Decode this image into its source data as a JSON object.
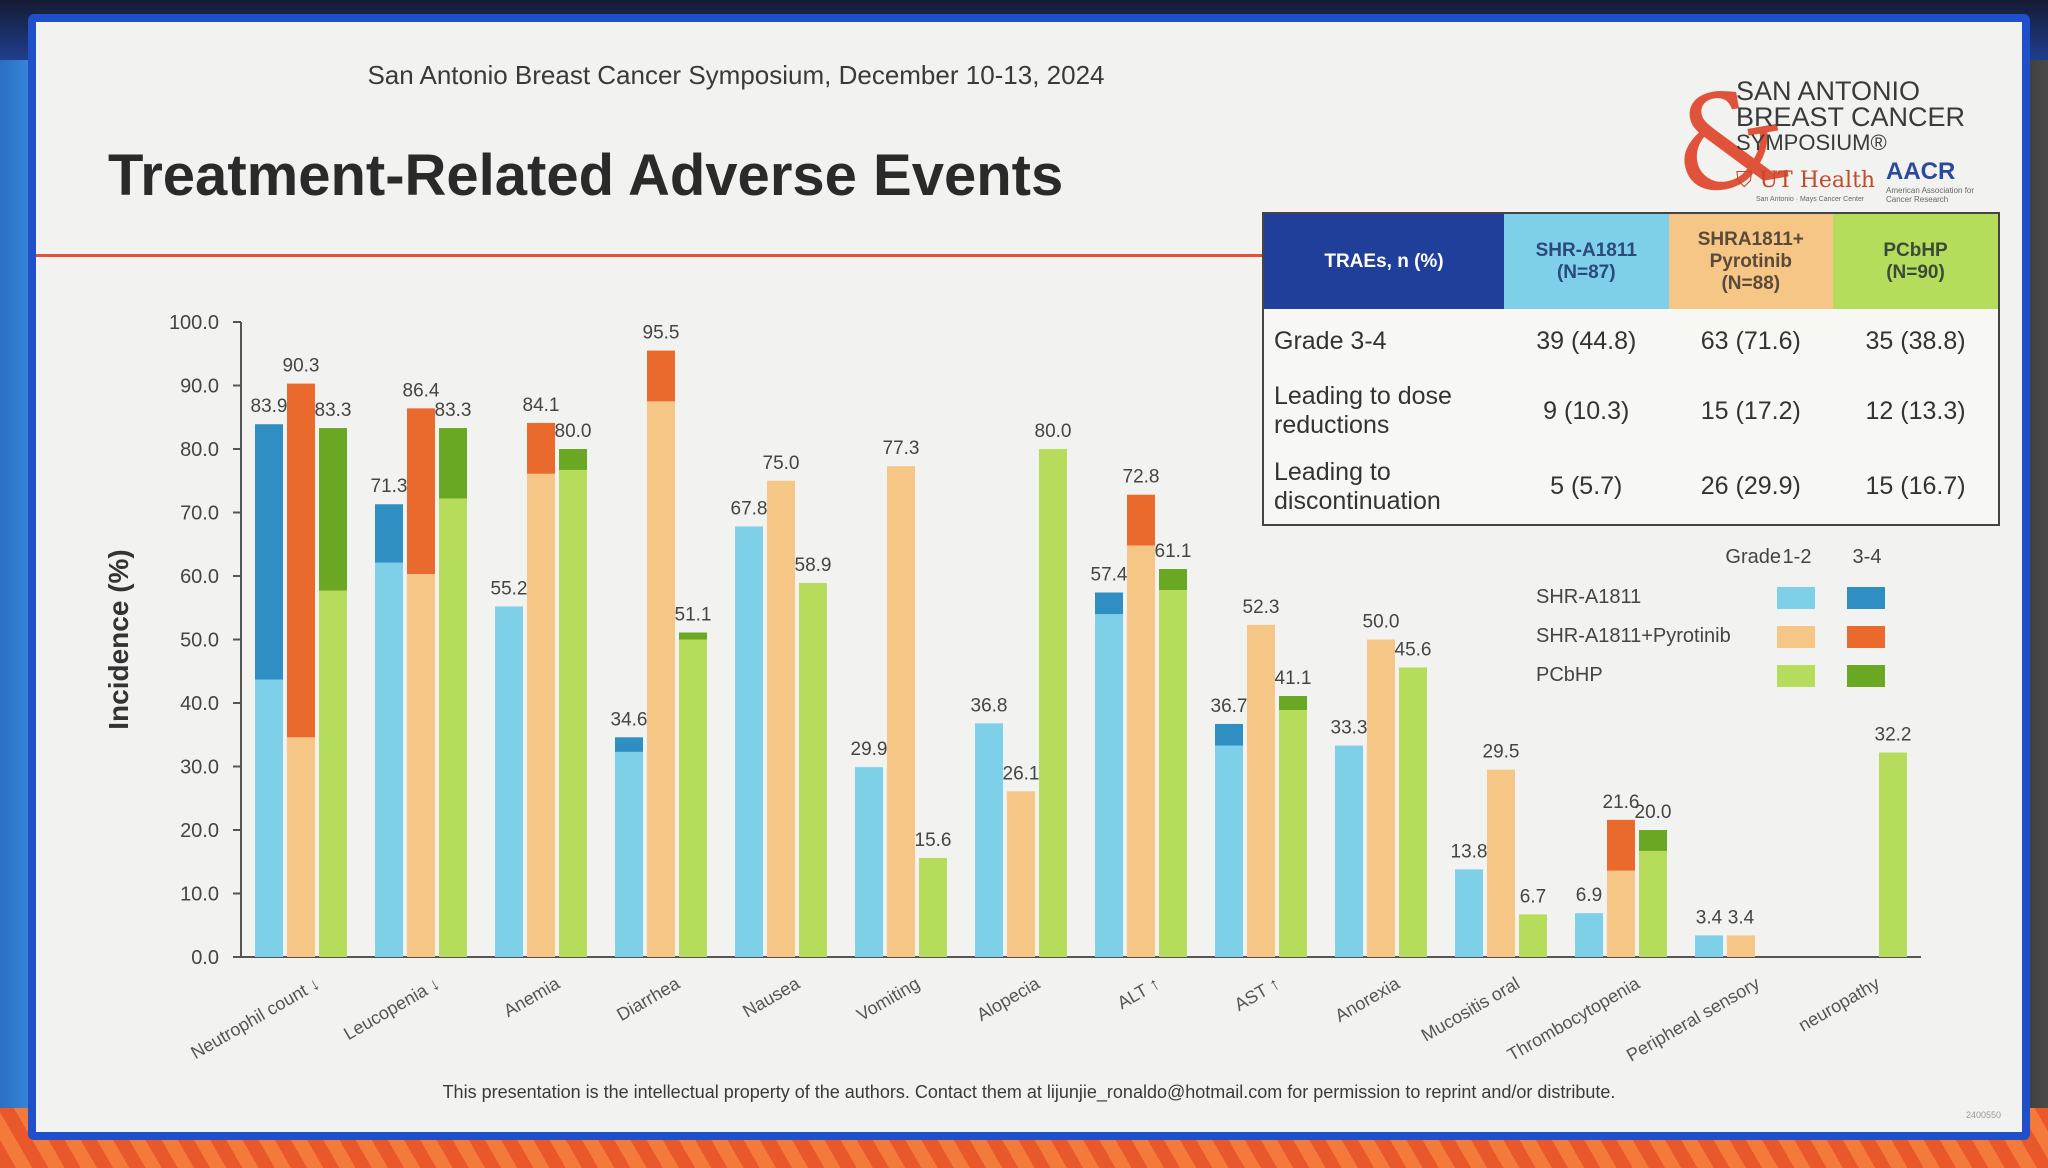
{
  "header": "San Antonio Breast Cancer Symposium, December 10-13, 2024",
  "title": "Treatment-Related Adverse Events",
  "logo": {
    "line1": "SAN ANTONIO",
    "line2": "BREAST CANCER",
    "line3": "SYMPOSIUM®",
    "ut": "UT Health",
    "ut_sub": "San Antonio · Mays Cancer Center",
    "aacr": "AACR",
    "aacr_sub": "American Association for Cancer Research"
  },
  "table": {
    "corner": "TRAEs, n (%)",
    "columns": [
      {
        "line1": "SHR-A1811",
        "line2": "(N=87)",
        "bg": "#7ecfe8"
      },
      {
        "line1": "SHRA1811+",
        "line2": "Pyrotinib",
        "line3": "(N=88)",
        "bg": "#f6c686"
      },
      {
        "line1": "PCbHP",
        "line2": "(N=90)",
        "bg": "#b6dc5c"
      }
    ],
    "rows": [
      {
        "label1": "Grade 3-4",
        "label2": "",
        "values": [
          "39 (44.8)",
          "63 (71.6)",
          "35 (38.8)"
        ]
      },
      {
        "label1": "Leading to dose",
        "label2": "reductions",
        "values": [
          "9 (10.3)",
          "15 (17.2)",
          "12 (13.3)"
        ]
      },
      {
        "label1": "Leading to",
        "label2": "discontinuation",
        "values": [
          "5 (5.7)",
          "26 (29.9)",
          "15 (16.7)"
        ]
      }
    ]
  },
  "footer": "This presentation is the intellectual property of the authors. Contact them at lijunjie_ronaldo@hotmail.com for permission to reprint and/or distribute.",
  "footer_code": "2400550",
  "chart_data": {
    "type": "bar",
    "ylabel": "Incidence (%)",
    "ylim": [
      0,
      100
    ],
    "yticks": [
      "0.0",
      "10.0",
      "20.0",
      "30.0",
      "40.0",
      "50.0",
      "60.0",
      "70.0",
      "80.0",
      "90.0",
      "100.0"
    ],
    "categories": [
      "Neutrophil count ↓",
      "Leucopenia ↓",
      "Anemia",
      "Diarrhea",
      "Nausea",
      "Vomiting",
      "Alopecia",
      "ALT ↑",
      "AST ↑",
      "Anorexia",
      "Mucositis oral",
      "Thrombocytopenia",
      "Peripheral sensory",
      "neuropathy"
    ],
    "legend": {
      "grade_label": "Grade",
      "grade_12": "1-2",
      "grade_34": "3-4",
      "placement": "right",
      "entries": [
        "SHR-A1811",
        "SHR-A1811+Pyrotinib",
        "PCbHP"
      ]
    },
    "series": [
      {
        "name": "SHR-A1811",
        "color12": "#7ecfe8",
        "color34": "#2f8fc2",
        "totals": [
          83.9,
          71.3,
          55.2,
          34.6,
          67.8,
          29.9,
          36.8,
          57.4,
          36.7,
          33.3,
          13.8,
          6.9,
          3.4,
          null
        ],
        "labels": [
          "83.9",
          "71.3",
          "55.2",
          "34.6",
          "67.8",
          "29.9",
          "36.8",
          "57.4",
          "36.7",
          "33.3",
          "13.8",
          "6.9",
          "3.4",
          ""
        ],
        "grade34": [
          40.2,
          9.2,
          0,
          2.3,
          0,
          0,
          0,
          3.4,
          3.4,
          0,
          0,
          0,
          0,
          0
        ]
      },
      {
        "name": "SHR-A1811+Pyrotinib",
        "color12": "#f6c686",
        "color34": "#ea6a2e",
        "totals": [
          90.3,
          86.4,
          84.1,
          95.5,
          75.0,
          77.3,
          26.1,
          72.8,
          52.3,
          50.0,
          29.5,
          21.6,
          3.4,
          null
        ],
        "labels": [
          "90.3",
          "86.4",
          "84.1",
          "95.5",
          "75.0",
          "77.3",
          "26.1",
          "72.8",
          "52.3",
          "50.0",
          "29.5",
          "21.6",
          "3.4",
          ""
        ],
        "grade34": [
          55.7,
          26.1,
          8.0,
          8.0,
          0,
          0,
          0,
          8.0,
          0,
          0,
          0,
          8.0,
          0,
          0
        ]
      },
      {
        "name": "PCbHP",
        "color12": "#b6dc5c",
        "color34": "#6aa824",
        "totals": [
          83.3,
          83.3,
          80.0,
          51.1,
          58.9,
          15.6,
          80.0,
          61.1,
          41.1,
          45.6,
          6.7,
          20.0,
          null,
          32.2
        ],
        "labels": [
          "83.3",
          "83.3",
          "80.0",
          "51.1",
          "58.9",
          "15.6",
          "80.0",
          "61.1",
          "41.1",
          "45.6",
          "6.7",
          "20.0",
          "",
          "32.2"
        ],
        "grade34": [
          25.6,
          11.1,
          3.3,
          1.1,
          0,
          0,
          0,
          3.3,
          2.2,
          0,
          0,
          3.3,
          0,
          0
        ]
      }
    ]
  }
}
